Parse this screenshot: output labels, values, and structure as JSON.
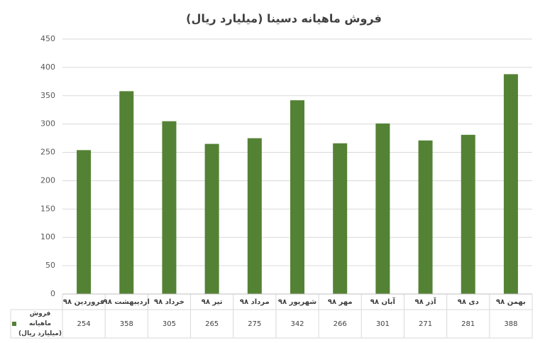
{
  "chart_data": {
    "type": "bar",
    "title": "فروش ماهیانه دسینا (میلیارد ریال)",
    "categories": [
      "فروردین ۹۸",
      "اردیبهشت ۹۸",
      "خرداد ۹۸",
      "تیر ۹۸",
      "مرداد ۹۸",
      "شهریور ۹۸",
      "مهر ۹۸",
      "آبان ۹۸",
      "آذر ۹۸",
      "دی ۹۸",
      "بهمن ۹۸"
    ],
    "series": [
      {
        "name": "فروش ماهیانه (میلیارد ریال)",
        "color": "#548235",
        "values": [
          254,
          358,
          305,
          265,
          275,
          342,
          266,
          301,
          271,
          281,
          388
        ]
      }
    ],
    "ylim": [
      0,
      450
    ],
    "yticks": [
      0,
      50,
      100,
      150,
      200,
      250,
      300,
      350,
      400,
      450
    ],
    "grid": true
  }
}
